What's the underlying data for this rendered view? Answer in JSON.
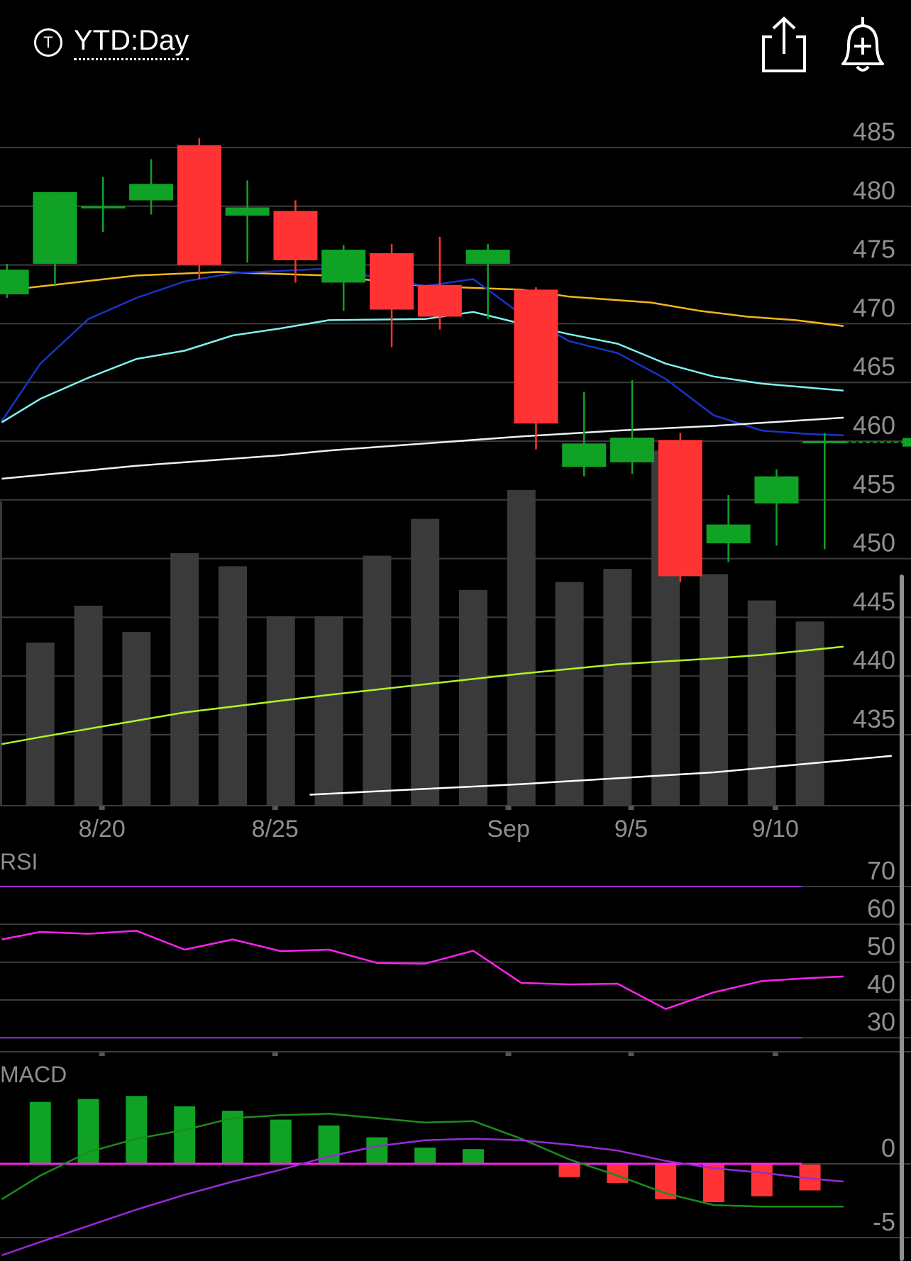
{
  "header": {
    "ticker_icon_glyph": "T",
    "range_label": "YTD:Day",
    "share_icon": "share-icon",
    "alert_icon": "bell-plus-icon"
  },
  "colors": {
    "up": "#0fa225",
    "down": "#ff3333",
    "volume": "#3a3a3a",
    "grid": "#3c3c3c",
    "axis_text": "#8e8e93",
    "ma_fast": "#1a34c9",
    "ma_cyan": "#7ff2f0",
    "ma_orange": "#f5b61a",
    "ma_white": "#e8f4f4",
    "ma_lime": "#b6f226",
    "ma_long": "#ffffff",
    "rsi_line": "#ff22ee",
    "rsi_bound": "#9b30d9",
    "macd_line": "#1c8c1c",
    "signal_line": "#9a2ad8",
    "zero_line": "#ff22ee"
  },
  "chart_data": [
    {
      "type": "candlestick",
      "title": "",
      "x_ticks": [
        "8/20",
        "8/25",
        "Sep",
        "9/5",
        "9/10"
      ],
      "x_tick_index": [
        1.5,
        5.1,
        9.95,
        12.5,
        15.5
      ],
      "y_ticks": [
        485,
        480,
        475,
        470,
        465,
        460,
        455,
        450,
        445,
        440,
        435
      ],
      "ylim": [
        430,
        486
      ],
      "last_price": 459.9,
      "candles": [
        {
          "i": -0.3,
          "o": 472.5,
          "c": 474.6,
          "h": 475.1,
          "l": 472.2
        },
        {
          "i": 0.7,
          "o": 475.1,
          "c": 481.2,
          "h": 481.2,
          "l": 473.3
        },
        {
          "i": 1.7,
          "o": 479.9,
          "c": 480.0,
          "h": 482.5,
          "l": 477.8
        },
        {
          "i": 2.7,
          "o": 480.5,
          "c": 481.9,
          "h": 484.0,
          "l": 479.3
        },
        {
          "i": 3.7,
          "o": 485.2,
          "c": 475.0,
          "h": 485.8,
          "l": 473.8
        },
        {
          "i": 4.7,
          "o": 479.2,
          "c": 479.9,
          "h": 482.2,
          "l": 475.2
        },
        {
          "i": 5.7,
          "o": 479.6,
          "c": 475.4,
          "h": 480.5,
          "l": 473.5
        },
        {
          "i": 6.7,
          "o": 473.5,
          "c": 476.3,
          "h": 476.7,
          "l": 471.1
        },
        {
          "i": 7.7,
          "o": 476.0,
          "c": 471.2,
          "h": 476.8,
          "l": 468.0
        },
        {
          "i": 8.7,
          "o": 473.3,
          "c": 470.6,
          "h": 477.4,
          "l": 469.5
        },
        {
          "i": 9.7,
          "o": 475.1,
          "c": 476.3,
          "h": 476.8,
          "l": 470.4
        },
        {
          "i": 10.7,
          "o": 472.9,
          "c": 461.5,
          "h": 473.1,
          "l": 459.3
        },
        {
          "i": 11.7,
          "o": 457.8,
          "c": 459.8,
          "h": 464.2,
          "l": 457.0
        },
        {
          "i": 12.7,
          "o": 458.2,
          "c": 460.3,
          "h": 465.2,
          "l": 457.2
        },
        {
          "i": 13.7,
          "o": 460.1,
          "c": 448.5,
          "h": 460.7,
          "l": 448.0
        },
        {
          "i": 14.7,
          "o": 451.3,
          "c": 452.9,
          "h": 455.4,
          "l": 449.7
        },
        {
          "i": 15.7,
          "o": 454.7,
          "c": 457.0,
          "h": 457.6,
          "l": 451.1
        },
        {
          "i": 16.7,
          "o": 459.9,
          "c": 460.0,
          "h": 460.7,
          "l": 450.8
        }
      ],
      "volume_relative": [
        0.62,
        0.76,
        0.66,
        0.96,
        0.91,
        0.72,
        0.72,
        0.95,
        1.09,
        0.82,
        1.2,
        0.85,
        0.9,
        1.35,
        0.88,
        0.78,
        0.7
      ],
      "moving_averages": [
        {
          "key": "ma_orange",
          "values": [
            [
              -0.7,
              472.8
            ],
            [
              2.1,
              474.1
            ],
            [
              3.8,
              474.4
            ],
            [
              6.1,
              474.1
            ],
            [
              8.1,
              473.2
            ],
            [
              10.1,
              472.9
            ],
            [
              11.1,
              472.3
            ],
            [
              12.8,
              471.8
            ],
            [
              13.8,
              471.1
            ],
            [
              14.8,
              470.6
            ],
            [
              15.8,
              470.3
            ],
            [
              16.8,
              469.8
            ]
          ]
        },
        {
          "key": "ma_fast",
          "values": [
            [
              -0.7,
              461.7
            ],
            [
              0.1,
              466.6
            ],
            [
              1.1,
              470.4
            ],
            [
              2.1,
              472.2
            ],
            [
              3.1,
              473.6
            ],
            [
              4.1,
              474.3
            ],
            [
              6.1,
              474.7
            ],
            [
              8.1,
              473.2
            ],
            [
              9.1,
              473.8
            ],
            [
              10.1,
              470.8
            ],
            [
              11.1,
              468.5
            ],
            [
              12.1,
              467.5
            ],
            [
              13.1,
              465.3
            ],
            [
              14.1,
              462.2
            ],
            [
              15.1,
              460.9
            ],
            [
              16.1,
              460.6
            ],
            [
              16.8,
              460.5
            ]
          ]
        },
        {
          "key": "ma_cyan",
          "values": [
            [
              -0.7,
              461.6
            ],
            [
              0.1,
              463.6
            ],
            [
              1.1,
              465.4
            ],
            [
              2.1,
              467.0
            ],
            [
              3.1,
              467.7
            ],
            [
              4.1,
              469.0
            ],
            [
              5.1,
              469.6
            ],
            [
              6.1,
              470.3
            ],
            [
              8.1,
              470.4
            ],
            [
              9.1,
              471.0
            ],
            [
              10.1,
              470.0
            ],
            [
              11.1,
              469.1
            ],
            [
              12.1,
              468.3
            ],
            [
              13.1,
              466.6
            ],
            [
              14.1,
              465.5
            ],
            [
              15.1,
              464.9
            ],
            [
              16.8,
              464.3
            ]
          ]
        },
        {
          "key": "ma_white",
          "values": [
            [
              -0.7,
              456.8
            ],
            [
              2.1,
              457.9
            ],
            [
              3.1,
              458.2
            ],
            [
              5.1,
              458.8
            ],
            [
              6.1,
              459.2
            ],
            [
              8.1,
              459.8
            ],
            [
              10.1,
              460.4
            ],
            [
              12.1,
              460.9
            ],
            [
              14.1,
              461.3
            ],
            [
              16.8,
              462.0
            ]
          ]
        },
        {
          "key": "ma_lime",
          "values": [
            [
              -0.7,
              434.2
            ],
            [
              0.1,
              434.8
            ],
            [
              2.1,
              436.2
            ],
            [
              3.1,
              436.9
            ],
            [
              5.1,
              437.9
            ],
            [
              6.1,
              438.4
            ],
            [
              8.1,
              439.3
            ],
            [
              10.1,
              440.2
            ],
            [
              12.1,
              441.0
            ],
            [
              14.1,
              441.5
            ],
            [
              15.1,
              441.8
            ],
            [
              16.8,
              442.5
            ]
          ]
        },
        {
          "key": "ma_long",
          "values": [
            [
              5.7,
              429.9
            ],
            [
              10.1,
              430.8
            ],
            [
              14.1,
              431.8
            ],
            [
              17.8,
              433.2
            ]
          ]
        }
      ]
    },
    {
      "type": "line",
      "title": "RSI",
      "y_ticks": [
        70,
        60,
        50,
        40,
        30
      ],
      "ylim": [
        24,
        74
      ],
      "bounds": [
        70,
        30
      ],
      "x": [
        -0.7,
        0.1,
        1.1,
        2.1,
        3.1,
        4.1,
        5.1,
        6.1,
        7.1,
        8.1,
        9.1,
        10.1,
        11.1,
        12.1,
        13.1,
        14.1,
        15.1,
        16.1,
        16.8
      ],
      "values": [
        56,
        58,
        57.5,
        58.3,
        53.3,
        56,
        52.9,
        53.3,
        49.8,
        49.6,
        53,
        44.5,
        44.1,
        44.3,
        37.6,
        42,
        45,
        45.8,
        46.2
      ]
    },
    {
      "type": "bar",
      "title": "MACD",
      "y_ticks": [
        0,
        -5
      ],
      "ylim": [
        -7.2,
        5.0
      ],
      "histogram_x": [
        0.1,
        1.1,
        2.1,
        3.1,
        4.1,
        5.1,
        6.1,
        7.1,
        8.1,
        9.1,
        10.1,
        11.1,
        12.1,
        13.1,
        14.1,
        15.1,
        16.1
      ],
      "histogram": [
        4.2,
        4.4,
        4.6,
        3.9,
        3.6,
        3.0,
        2.6,
        1.8,
        1.1,
        1.0,
        0.0,
        -0.9,
        -1.3,
        -2.4,
        -2.6,
        -2.2,
        -1.8
      ],
      "macd_line": {
        "x": [
          -0.7,
          0.1,
          1.1,
          2.1,
          3.1,
          4.1,
          5.1,
          6.1,
          7.1,
          8.1,
          9.1,
          10.1,
          11.1,
          12.1,
          13.1,
          14.1,
          15.1,
          16.1,
          16.8
        ],
        "values": [
          -2.4,
          -0.8,
          0.8,
          1.7,
          2.3,
          3.1,
          3.3,
          3.4,
          3.1,
          2.8,
          2.9,
          1.7,
          0.3,
          -0.8,
          -2.0,
          -2.8,
          -2.9,
          -2.9,
          -2.9
        ]
      },
      "signal_line": {
        "x": [
          -0.7,
          0.1,
          1.1,
          2.1,
          3.1,
          4.1,
          5.1,
          6.1,
          7.1,
          8.1,
          9.1,
          10.1,
          11.1,
          12.1,
          13.1,
          14.1,
          15.1,
          16.1,
          16.8
        ],
        "values": [
          -6.2,
          -5.3,
          -4.2,
          -3.1,
          -2.1,
          -1.2,
          -0.4,
          0.5,
          1.2,
          1.6,
          1.7,
          1.6,
          1.3,
          0.9,
          0.2,
          -0.3,
          -0.6,
          -1.0,
          -1.2
        ]
      }
    }
  ]
}
